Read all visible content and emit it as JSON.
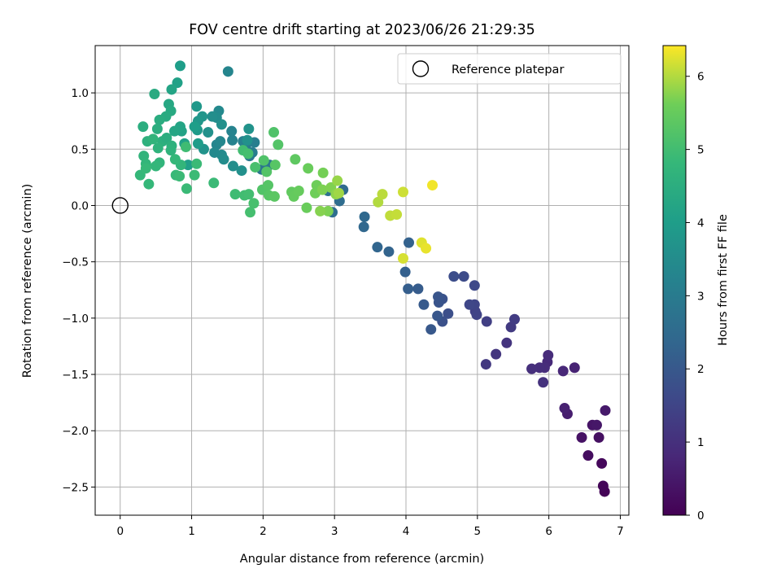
{
  "chart_data": {
    "type": "scatter",
    "title": "FOV centre drift starting at 2023/06/26 21:29:35",
    "xlabel": "Angular distance from reference (arcmin)",
    "ylabel": "Rotation from reference (arcmin)",
    "xlim": [
      -0.35,
      7.12
    ],
    "ylim": [
      -2.75,
      1.42
    ],
    "xticks": [
      0,
      1,
      2,
      3,
      4,
      5,
      6,
      7
    ],
    "xtick_labels": [
      "0",
      "1",
      "2",
      "3",
      "4",
      "5",
      "6",
      "7"
    ],
    "yticks": [
      -2.5,
      -2.0,
      -1.5,
      -1.0,
      -0.5,
      0.0,
      0.5,
      1.0
    ],
    "ytick_labels": [
      "−2.5",
      "−2.0",
      "−1.5",
      "−1.0",
      "−0.5",
      "0.0",
      "0.5",
      "1.0"
    ],
    "grid": true,
    "legend": {
      "placement": "top-right",
      "entries": [
        "Reference platepar"
      ]
    },
    "reference_point": {
      "x": 0,
      "y": 0,
      "label": "Reference platepar"
    },
    "colorbar": {
      "label": "Hours from first FF file",
      "colormap": "viridis",
      "range": [
        0,
        6.42
      ],
      "ticks": [
        0,
        1,
        2,
        3,
        4,
        5,
        6
      ],
      "tick_labels": [
        "0",
        "1",
        "2",
        "3",
        "4",
        "5",
        "6"
      ]
    },
    "series": [
      {
        "points": [
          [
            6.78,
            -2.54,
            0.05
          ],
          [
            6.76,
            -2.49,
            0.1
          ],
          [
            6.74,
            -2.29,
            0.15
          ],
          [
            6.55,
            -2.22,
            0.25
          ],
          [
            6.46,
            -2.06,
            0.35
          ],
          [
            6.7,
            -2.06,
            0.3
          ],
          [
            6.61,
            -1.95,
            0.4
          ],
          [
            6.67,
            -1.95,
            0.45
          ],
          [
            6.79,
            -1.82,
            0.5
          ],
          [
            6.26,
            -1.85,
            0.6
          ],
          [
            6.22,
            -1.8,
            0.65
          ],
          [
            6.36,
            -1.44,
            0.7
          ],
          [
            6.2,
            -1.47,
            0.8
          ],
          [
            5.98,
            -1.39,
            0.85
          ],
          [
            5.99,
            -1.33,
            0.9
          ],
          [
            5.94,
            -1.44,
            0.92
          ],
          [
            5.87,
            -1.44,
            0.95
          ],
          [
            5.76,
            -1.45,
            1.0
          ],
          [
            5.92,
            -1.57,
            1.05
          ],
          [
            5.41,
            -1.22,
            1.1
          ],
          [
            5.26,
            -1.32,
            1.15
          ],
          [
            5.12,
            -1.41,
            1.2
          ],
          [
            5.47,
            -1.08,
            1.25
          ],
          [
            5.52,
            -1.01,
            1.3
          ],
          [
            5.13,
            -1.03,
            1.35
          ],
          [
            4.97,
            -0.94,
            1.4
          ],
          [
            4.99,
            -0.97,
            1.45
          ],
          [
            4.96,
            -0.88,
            1.5
          ],
          [
            4.89,
            -0.88,
            1.55
          ],
          [
            4.96,
            -0.71,
            1.6
          ],
          [
            4.81,
            -0.63,
            1.65
          ],
          [
            4.67,
            -0.63,
            1.7
          ],
          [
            4.59,
            -0.96,
            1.75
          ],
          [
            4.51,
            -1.03,
            1.8
          ],
          [
            4.51,
            -0.83,
            1.85
          ],
          [
            4.46,
            -0.86,
            1.9
          ],
          [
            4.45,
            -0.81,
            1.92
          ],
          [
            4.44,
            -0.98,
            1.95
          ],
          [
            4.35,
            -1.1,
            2.0
          ],
          [
            4.25,
            -0.88,
            2.05
          ],
          [
            4.17,
            -0.74,
            2.1
          ],
          [
            4.03,
            -0.74,
            2.15
          ],
          [
            3.99,
            -0.59,
            2.2
          ],
          [
            4.04,
            -0.33,
            2.25
          ],
          [
            3.76,
            -0.41,
            2.3
          ],
          [
            3.6,
            -0.37,
            2.35
          ],
          [
            3.41,
            -0.19,
            2.4
          ],
          [
            3.42,
            -0.1,
            2.45
          ],
          [
            3.12,
            0.14,
            2.5
          ],
          [
            3.07,
            0.04,
            2.55
          ],
          [
            2.97,
            -0.06,
            2.6
          ],
          [
            2.91,
            0.13,
            2.7
          ],
          [
            1.98,
            0.32,
            2.8
          ],
          [
            2.09,
            0.36,
            2.85
          ],
          [
            1.81,
            0.44,
            2.9
          ],
          [
            1.76,
            0.51,
            3.0
          ],
          [
            1.85,
            0.47,
            3.05
          ],
          [
            1.88,
            0.56,
            3.1
          ],
          [
            1.72,
            0.57,
            3.15
          ],
          [
            1.57,
            0.58,
            3.2
          ],
          [
            1.56,
            0.66,
            3.25
          ],
          [
            1.35,
            0.54,
            3.3
          ],
          [
            1.4,
            0.57,
            3.35
          ],
          [
            1.32,
            0.47,
            3.4
          ],
          [
            1.42,
            0.45,
            3.45
          ],
          [
            1.45,
            0.41,
            3.5
          ],
          [
            1.58,
            0.35,
            3.55
          ],
          [
            1.7,
            0.31,
            3.6
          ],
          [
            1.78,
            0.58,
            3.65
          ],
          [
            1.8,
            0.68,
            3.7
          ],
          [
            1.51,
            1.19,
            3.3
          ],
          [
            1.38,
            0.84,
            3.4
          ],
          [
            1.35,
            0.78,
            3.5
          ],
          [
            1.29,
            0.79,
            3.55
          ],
          [
            1.42,
            0.72,
            3.6
          ],
          [
            1.23,
            0.65,
            3.65
          ],
          [
            1.17,
            0.5,
            3.7
          ],
          [
            1.15,
            0.79,
            3.75
          ],
          [
            1.09,
            0.75,
            3.8
          ],
          [
            1.07,
            0.88,
            3.85
          ],
          [
            1.08,
            0.67,
            3.9
          ],
          [
            1.09,
            0.55,
            3.95
          ],
          [
            1.04,
            0.7,
            4.0
          ],
          [
            0.95,
            0.36,
            4.05
          ],
          [
            0.9,
            0.55,
            4.1
          ],
          [
            0.86,
            0.66,
            4.15
          ],
          [
            0.84,
            0.7,
            4.2
          ],
          [
            0.76,
            0.66,
            4.25
          ],
          [
            0.8,
            1.09,
            4.1
          ],
          [
            0.84,
            1.24,
            4.0
          ],
          [
            0.72,
            1.03,
            4.2
          ],
          [
            0.68,
            0.9,
            4.3
          ],
          [
            0.71,
            0.84,
            4.35
          ],
          [
            0.64,
            0.79,
            4.4
          ],
          [
            0.55,
            0.76,
            4.45
          ],
          [
            0.48,
            0.99,
            4.4
          ],
          [
            0.52,
            0.68,
            4.5
          ],
          [
            0.59,
            0.57,
            4.55
          ],
          [
            0.65,
            0.6,
            4.5
          ],
          [
            0.72,
            0.53,
            4.6
          ],
          [
            0.38,
            0.57,
            4.6
          ],
          [
            0.32,
            0.7,
            4.5
          ],
          [
            0.53,
            0.51,
            4.65
          ],
          [
            0.46,
            0.59,
            4.7
          ],
          [
            0.71,
            0.49,
            4.65
          ],
          [
            0.33,
            0.44,
            4.7
          ],
          [
            0.55,
            0.38,
            4.72
          ],
          [
            0.36,
            0.37,
            4.75
          ],
          [
            0.5,
            0.35,
            4.78
          ],
          [
            0.85,
            0.36,
            4.75
          ],
          [
            0.77,
            0.41,
            4.8
          ],
          [
            0.28,
            0.27,
            4.8
          ],
          [
            0.36,
            0.33,
            4.85
          ],
          [
            0.4,
            0.19,
            4.8
          ],
          [
            0.78,
            0.27,
            4.85
          ],
          [
            0.83,
            0.26,
            4.9
          ],
          [
            0.93,
            0.15,
            4.88
          ],
          [
            1.07,
            0.37,
            4.9
          ],
          [
            1.04,
            0.27,
            4.92
          ],
          [
            0.92,
            0.52,
            4.95
          ],
          [
            1.31,
            0.2,
            4.9
          ],
          [
            1.61,
            0.1,
            4.95
          ],
          [
            1.74,
            0.09,
            5.0
          ],
          [
            1.8,
            0.1,
            5.02
          ],
          [
            1.72,
            0.49,
            5.0
          ],
          [
            1.79,
            0.46,
            5.05
          ],
          [
            1.89,
            0.34,
            5.1
          ],
          [
            1.87,
            0.02,
            5.08
          ],
          [
            1.82,
            -0.06,
            5.05
          ],
          [
            2.01,
            0.4,
            5.2
          ],
          [
            2.05,
            0.3,
            5.25
          ],
          [
            1.99,
            0.14,
            5.22
          ],
          [
            2.07,
            0.18,
            5.28
          ],
          [
            2.08,
            0.09,
            5.3
          ],
          [
            2.16,
            0.08,
            5.35
          ],
          [
            2.17,
            0.36,
            5.3
          ],
          [
            2.15,
            0.65,
            5.2
          ],
          [
            2.21,
            0.54,
            5.25
          ],
          [
            2.45,
            0.41,
            5.4
          ],
          [
            2.4,
            0.12,
            5.45
          ],
          [
            2.43,
            0.08,
            5.48
          ],
          [
            2.5,
            0.13,
            5.5
          ],
          [
            2.61,
            -0.02,
            5.55
          ],
          [
            2.63,
            0.33,
            5.55
          ],
          [
            2.75,
            0.18,
            5.6
          ],
          [
            2.73,
            0.11,
            5.62
          ],
          [
            2.84,
            0.29,
            5.65
          ],
          [
            2.83,
            0.14,
            5.7
          ],
          [
            2.95,
            0.16,
            5.72
          ],
          [
            2.91,
            -0.05,
            5.7
          ],
          [
            2.8,
            -0.05,
            5.75
          ],
          [
            3.02,
            0.1,
            5.8
          ],
          [
            3.04,
            0.22,
            5.85
          ],
          [
            3.06,
            0.11,
            5.9
          ],
          [
            3.61,
            0.03,
            6.0
          ],
          [
            3.67,
            0.1,
            6.05
          ],
          [
            3.78,
            -0.09,
            6.08
          ],
          [
            3.87,
            -0.08,
            6.1
          ],
          [
            3.96,
            0.12,
            6.15
          ],
          [
            3.96,
            -0.47,
            6.2
          ],
          [
            4.22,
            -0.33,
            6.25
          ],
          [
            4.28,
            -0.38,
            6.3
          ],
          [
            4.37,
            0.18,
            6.35
          ]
        ]
      }
    ]
  }
}
